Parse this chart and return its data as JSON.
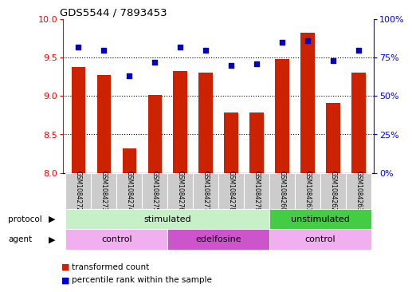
{
  "title": "GDS5544 / 7893453",
  "samples": [
    "GSM1084272",
    "GSM1084273",
    "GSM1084274",
    "GSM1084275",
    "GSM1084276",
    "GSM1084277",
    "GSM1084278",
    "GSM1084279",
    "GSM1084260",
    "GSM1084261",
    "GSM1084262",
    "GSM1084263"
  ],
  "bar_values": [
    9.38,
    9.27,
    8.32,
    9.01,
    9.33,
    9.3,
    8.78,
    8.79,
    9.48,
    9.82,
    8.91,
    9.3
  ],
  "percentile_values": [
    82,
    80,
    63,
    72,
    82,
    80,
    70,
    71,
    85,
    86,
    73,
    80
  ],
  "bar_color": "#cc2200",
  "percentile_color": "#0000cc",
  "bar_bottom": 8.0,
  "ylim_left": [
    8.0,
    10.0
  ],
  "ylim_right": [
    0,
    100
  ],
  "yticks_left": [
    8.0,
    8.5,
    9.0,
    9.5,
    10.0
  ],
  "yticks_right": [
    0,
    25,
    50,
    75,
    100
  ],
  "ytick_labels_right": [
    "0%",
    "25%",
    "50%",
    "75%",
    "100%"
  ],
  "protocol_labels": [
    {
      "text": "stimulated",
      "start": 0,
      "end": 7,
      "color": "#c8f0c8"
    },
    {
      "text": "unstimulated",
      "start": 8,
      "end": 11,
      "color": "#44cc44"
    }
  ],
  "agent_labels": [
    {
      "text": "control",
      "start": 0,
      "end": 3,
      "color": "#f0b0f0"
    },
    {
      "text": "edelfosine",
      "start": 4,
      "end": 7,
      "color": "#cc55cc"
    },
    {
      "text": "control",
      "start": 8,
      "end": 11,
      "color": "#f0b0f0"
    }
  ],
  "legend_bar_label": "transformed count",
  "legend_pct_label": "percentile rank within the sample",
  "protocol_arrow_label": "protocol",
  "agent_arrow_label": "agent",
  "bar_width": 0.55
}
